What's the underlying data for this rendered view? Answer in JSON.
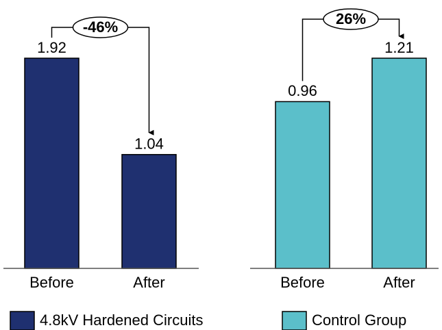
{
  "chart_data": [
    {
      "type": "bar",
      "categories": [
        "Before",
        "After"
      ],
      "annotation": "-46%",
      "series": [
        {
          "name": "4.8kV Hardened Circuits",
          "color": "#1f3070",
          "values": [
            1.92,
            1.04
          ]
        }
      ]
    },
    {
      "type": "bar",
      "categories": [
        "Before",
        "After"
      ],
      "annotation": "26%",
      "series": [
        {
          "name": "Control Group",
          "color": "#5bbfca",
          "values": [
            0.96,
            1.21
          ]
        }
      ]
    }
  ]
}
